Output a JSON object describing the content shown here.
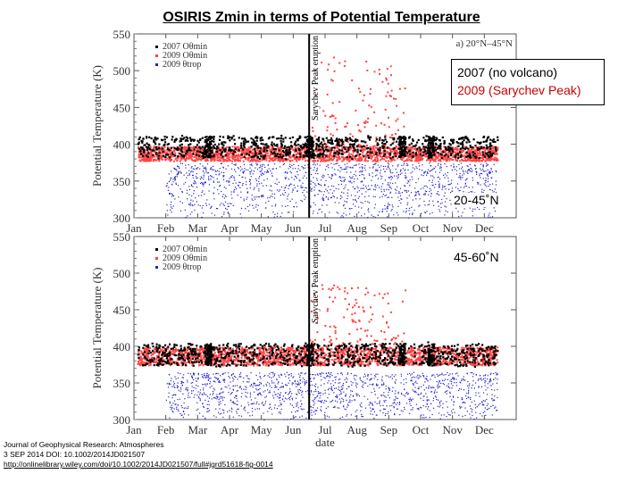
{
  "title": "OSIRIS Zmin in terms of Potential Temperature",
  "callout": {
    "line1": "2007 (no volcano)",
    "line2": "2009 (Sarychev Peak)",
    "line2_color": "#cc0000"
  },
  "region_labels": {
    "top": "20-45˚N",
    "bottom": "45-60˚N"
  },
  "citation": {
    "line1": "Journal of Geophysical Research: Atmospheres",
    "line2": "3 SEP 2014 DOI: 10.1002/2014JD021507",
    "link": "http://onlinelibrary.wiley.com/doi/10.1002/2014JD021507/full#jgrd51618-fig-0014"
  },
  "chart_data": [
    {
      "type": "scatter",
      "panel_label": "a) 20°N–45°N",
      "ylabel": "Potential Temperature (K)",
      "ylim": [
        300,
        550
      ],
      "yticks": [
        300,
        350,
        400,
        450,
        500,
        550
      ],
      "xticks": [
        "Jan",
        "Feb",
        "Mar",
        "Apr",
        "May",
        "Jun",
        "Jul",
        "Aug",
        "Sep",
        "Oct",
        "Nov",
        "Dec"
      ],
      "xlabel": "",
      "eruption_label": "Sarychev Peak eruption",
      "eruption_month": 6.0,
      "legend": [
        "2007 Oθmin",
        "2009 Oθmin",
        "2009 θtrop"
      ],
      "colors": {
        "2007": "#000000",
        "2009": "#ff4444",
        "trop": "#2222cc"
      },
      "series": [
        {
          "name": "2007 Oθmin",
          "typical_range": [
            383,
            412
          ]
        },
        {
          "name": "2009 Oθmin",
          "typical_range": [
            378,
            398
          ],
          "post_eruption_max": 520
        },
        {
          "name": "2009 θtrop",
          "typical_range": [
            300,
            375
          ]
        }
      ]
    },
    {
      "type": "scatter",
      "panel_label": "",
      "ylabel": "Potential Temperature (K)",
      "ylim": [
        300,
        550
      ],
      "yticks": [
        300,
        350,
        400,
        450,
        500,
        550
      ],
      "xticks": [
        "Jan",
        "Feb",
        "Mar",
        "Apr",
        "May",
        "Jun",
        "Jul",
        "Aug",
        "Sep",
        "Oct",
        "Nov",
        "Dec"
      ],
      "xlabel": "date",
      "eruption_label": "Sarychev Peak eruption",
      "eruption_month": 6.0,
      "legend": [
        "2007 Oθmin",
        "2009 Oθmin",
        "2009 θtrop"
      ],
      "colors": {
        "2007": "#000000",
        "2009": "#ff4444",
        "trop": "#2222cc"
      },
      "series": [
        {
          "name": "2007 Oθmin",
          "typical_range": [
            375,
            405
          ]
        },
        {
          "name": "2009 Oθmin",
          "typical_range": [
            375,
            400
          ],
          "post_eruption_max": 485
        },
        {
          "name": "2009 θtrop",
          "typical_range": [
            300,
            365
          ]
        }
      ]
    }
  ]
}
